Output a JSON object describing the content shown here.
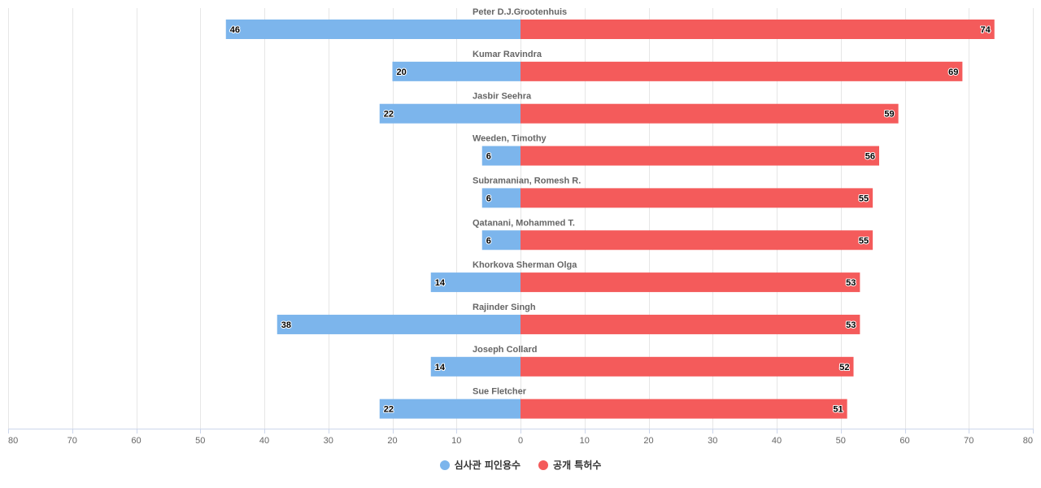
{
  "chart_data": {
    "type": "bar",
    "orientation": "horizontal-diverging",
    "title": "",
    "xlabel": "",
    "ylabel": "",
    "xlim": [
      -80,
      80
    ],
    "x_ticks": [
      -80,
      -70,
      -60,
      -50,
      -40,
      -30,
      -20,
      -10,
      0,
      10,
      20,
      30,
      40,
      50,
      60,
      70,
      80
    ],
    "x_tick_labels": [
      "80",
      "70",
      "60",
      "50",
      "40",
      "30",
      "20",
      "10",
      "0",
      "10",
      "20",
      "30",
      "40",
      "50",
      "60",
      "70",
      "80"
    ],
    "grid": true,
    "legend_position": "bottom-center",
    "categories": [
      "Peter D.J.Grootenhuis",
      "Kumar Ravindra",
      "Jasbir Seehra",
      "Weeden, Timothy",
      "Subramanian, Romesh R.",
      "Qatanani, Mohammed T.",
      "Khorkova Sherman Olga",
      "Rajinder Singh",
      "Joseph Collard",
      "Sue Fletcher"
    ],
    "series": [
      {
        "name": "심사관 피인용수",
        "side": "left",
        "color": "#7cb5ec",
        "values": [
          46,
          20,
          22,
          6,
          6,
          6,
          14,
          38,
          14,
          22
        ]
      },
      {
        "name": "공개 특허수",
        "side": "right",
        "color": "#f45b5b",
        "values": [
          74,
          69,
          59,
          56,
          55,
          55,
          53,
          53,
          52,
          51
        ]
      }
    ]
  }
}
